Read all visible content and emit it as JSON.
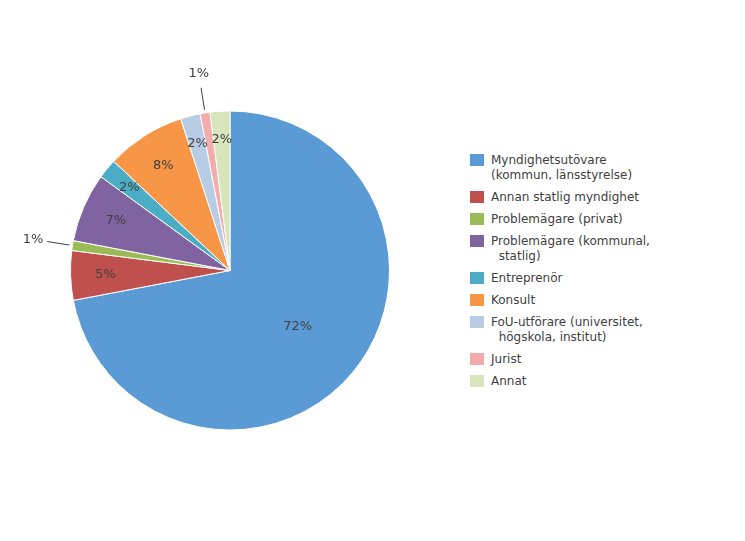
{
  "chart_data": {
    "type": "pie",
    "categories": [
      "Myndighetsutövare\n(kommun, länsstyrelse)",
      "Annan statlig myndighet",
      "Problemägare (privat)",
      "Problemägare (kommunal,\n  statlig)",
      "Entreprenör",
      "Konsult",
      "FoU-utförare (universitet,\n  högskola, institut)",
      "Jurist",
      "Annat"
    ],
    "values": [
      72,
      5,
      1,
      7,
      2,
      8,
      2,
      1,
      2
    ],
    "value_labels": [
      "72%",
      "5%",
      "1%",
      "7%",
      "2%",
      "8%",
      "2%",
      "1%",
      "2%"
    ],
    "colors": [
      "#5B9BD5",
      "#C0504D",
      "#9BBB59",
      "#8064A2",
      "#4BACC6",
      "#F79646",
      "#B8CCE4",
      "#F2ACAB",
      "#D7E4BC"
    ],
    "data_labels": true,
    "legend": "right"
  }
}
